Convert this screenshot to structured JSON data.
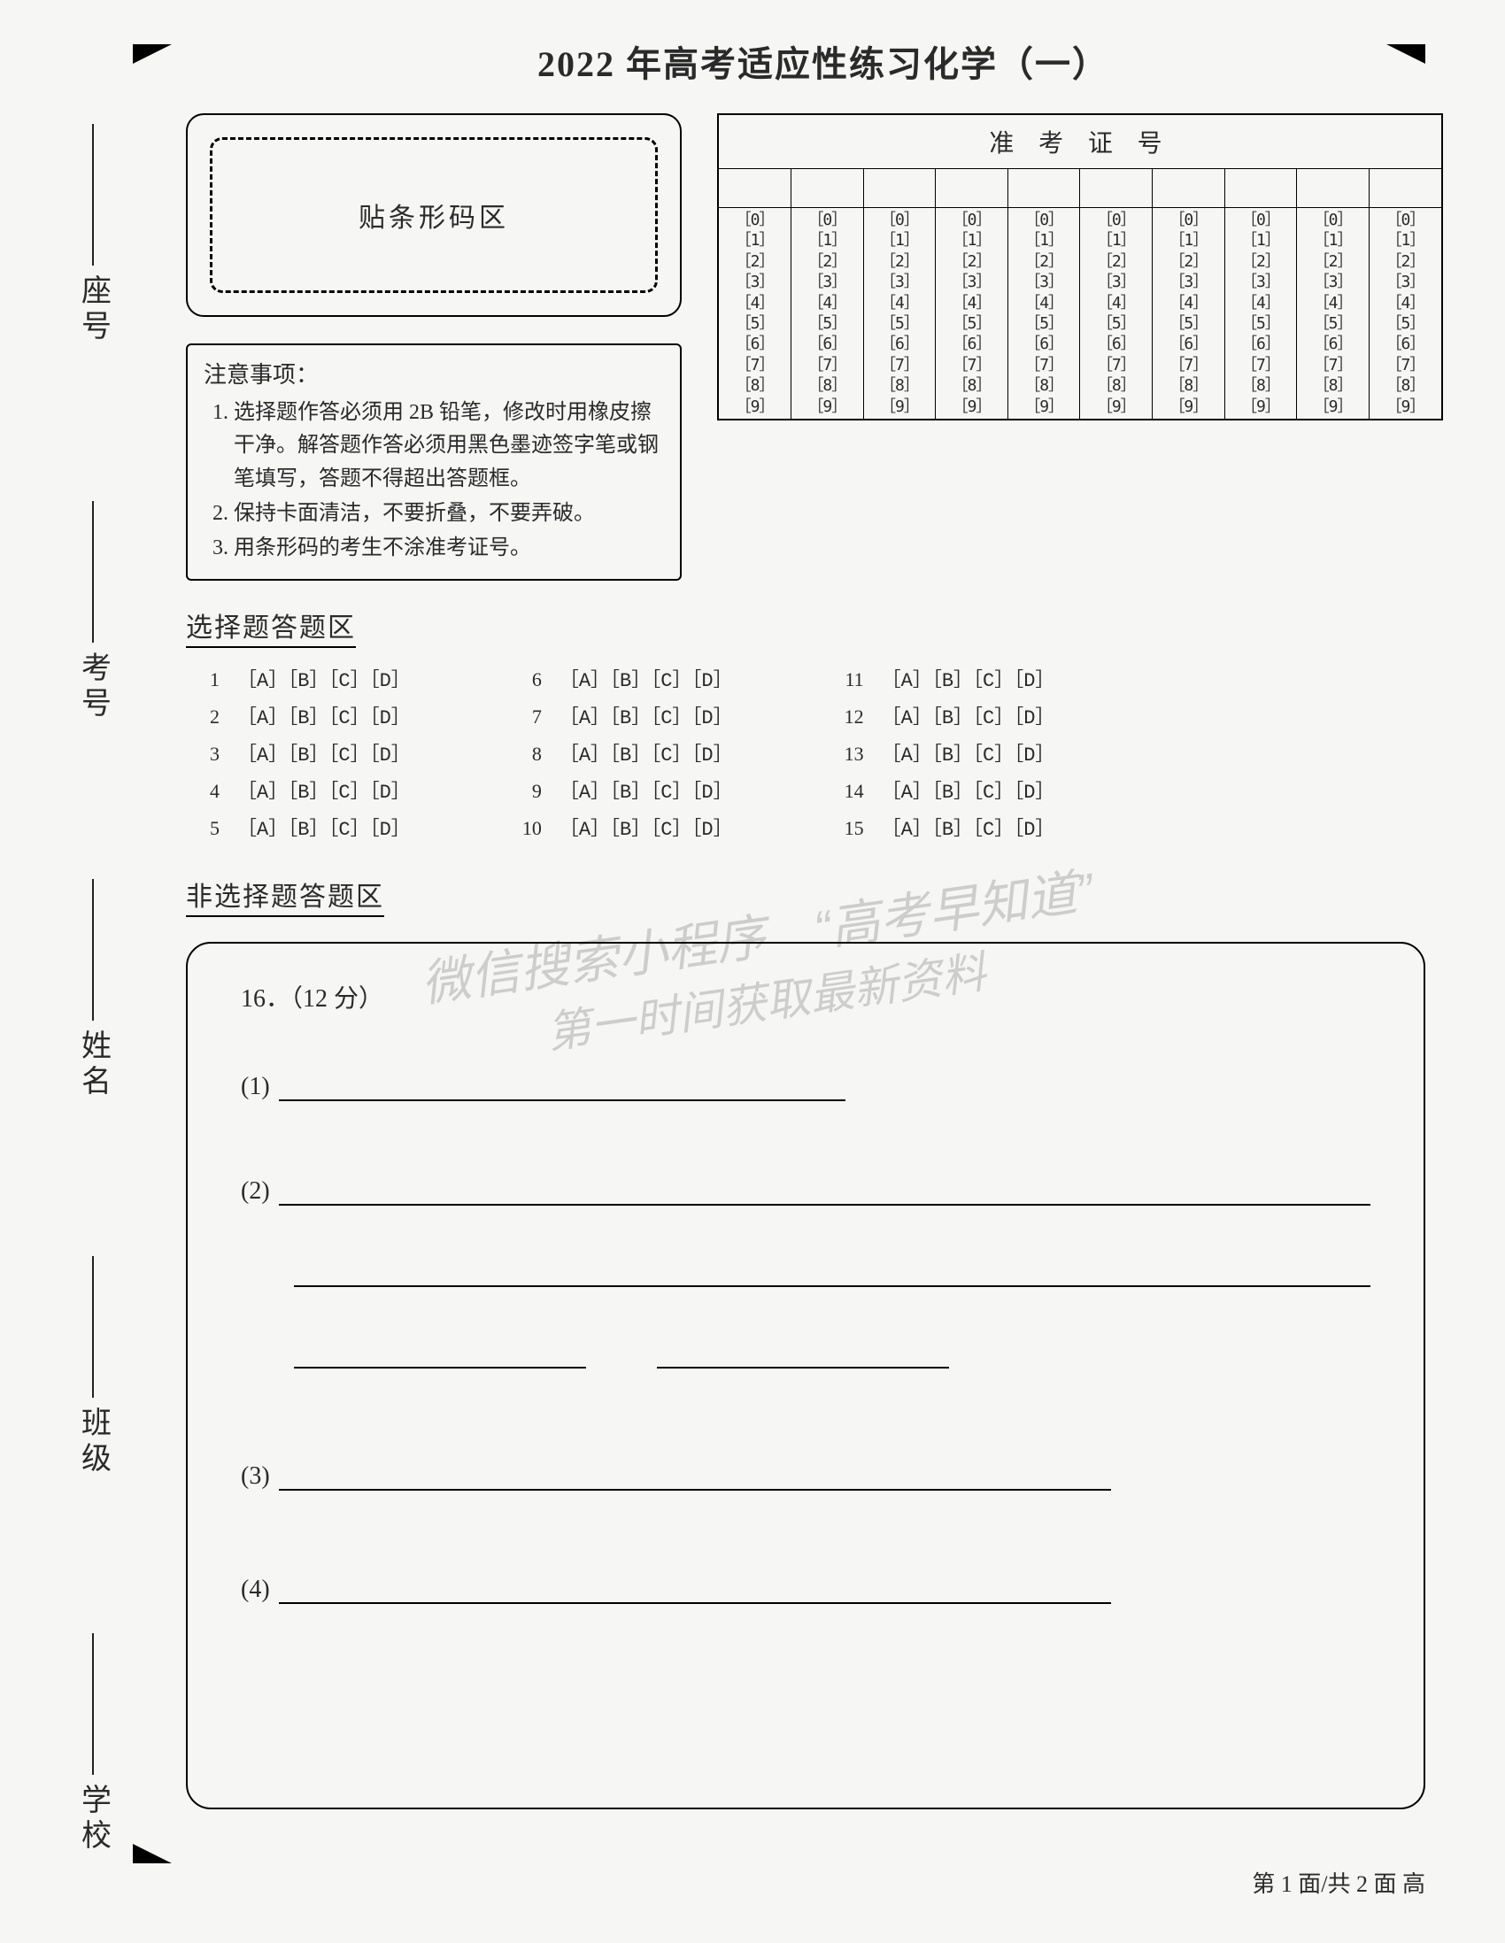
{
  "title": "2022 年高考适应性练习化学（一）",
  "side_labels": [
    "座号",
    "考号",
    "姓名",
    "班级",
    "学校"
  ],
  "barcode_label": "贴条形码区",
  "notice": {
    "heading": "注意事项：",
    "items": [
      "选择题作答必须用 2B 铅笔，修改时用橡皮擦干净。解答题作答必须用黑色墨迹签字笔或钢笔填写，答题不得超出答题框。",
      "保持卡面清洁，不要折叠，不要弄破。",
      "用条形码的考生不涂准考证号。"
    ]
  },
  "id_section": {
    "header": "准 考 证 号",
    "columns": 10,
    "digits": [
      "0",
      "1",
      "2",
      "3",
      "4",
      "5",
      "6",
      "7",
      "8",
      "9"
    ]
  },
  "sections": {
    "mc": "选择题答题区",
    "frq": "非选择题答题区"
  },
  "mc": {
    "options": "［A］［B］［C］［D］",
    "cols": [
      [
        1,
        2,
        3,
        4,
        5
      ],
      [
        6,
        7,
        8,
        9,
        10
      ],
      [
        11,
        12,
        13,
        14,
        15
      ]
    ]
  },
  "frq": {
    "q16_label": "16．（12 分）",
    "parts": [
      "(1)",
      "(2)",
      "(3)",
      "(4)"
    ]
  },
  "watermark": {
    "line1": "微信搜索小程序　“高考早知道”",
    "line2": "第一时间获取最新资料"
  },
  "footer": "第 1 面/共 2 面  高",
  "colors": {
    "page_bg": "#f6f6f4",
    "text": "#2a2a2a",
    "border": "#000000",
    "watermark": "rgba(100,100,100,0.28)"
  }
}
